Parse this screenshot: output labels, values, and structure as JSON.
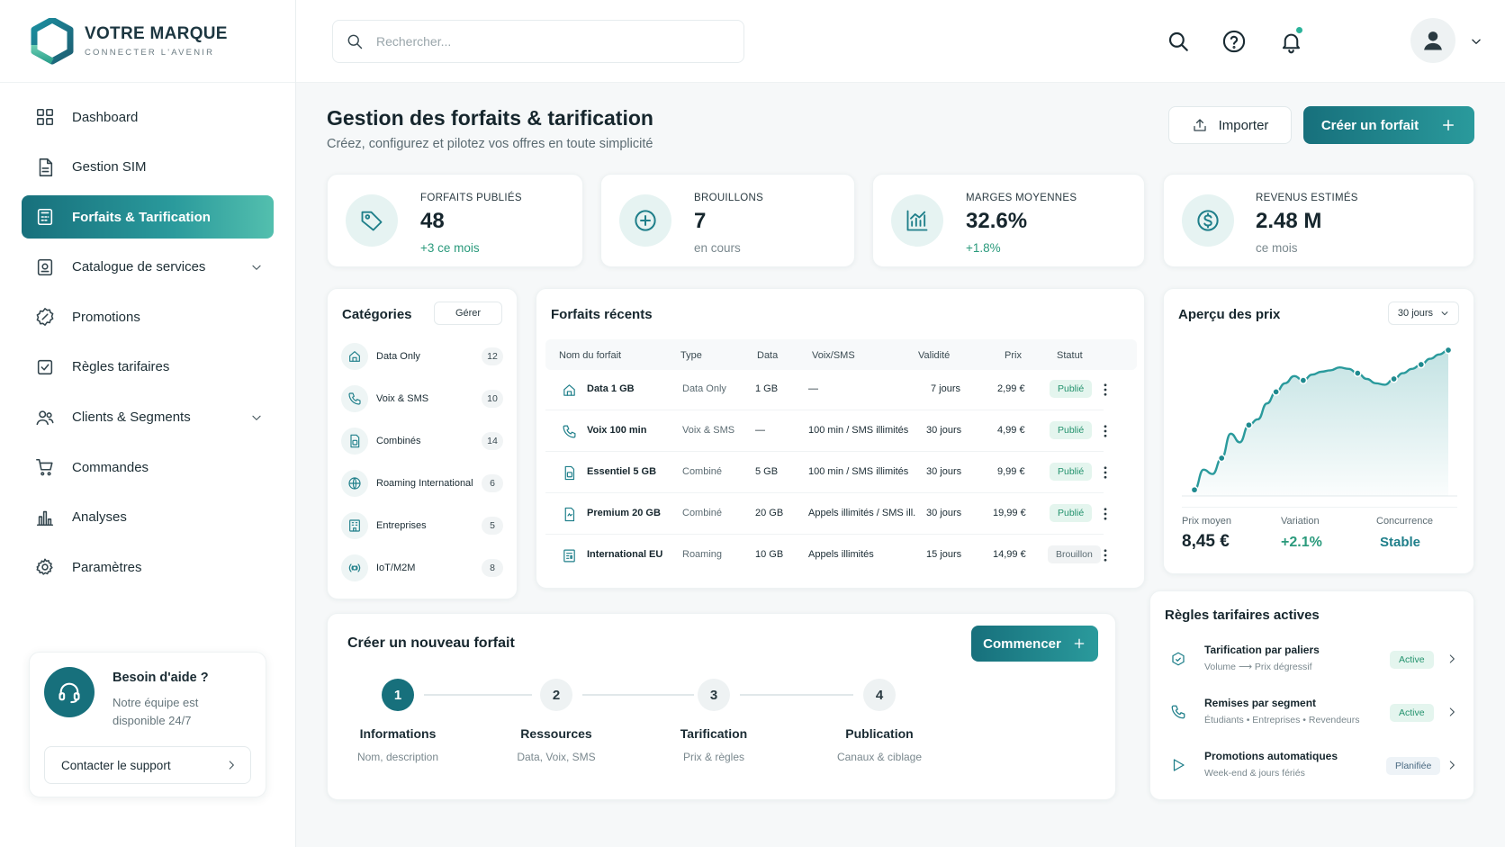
{
  "brand": {
    "name": "VOTRE MARQUE",
    "tagline": "CONNECTER L'AVENIR"
  },
  "nav": [
    {
      "label": "Dashboard",
      "icon": "grid-icon"
    },
    {
      "label": "Gestion SIM",
      "icon": "document-icon"
    },
    {
      "label": "Forfaits & Tarification",
      "icon": "calculator-icon",
      "active": true
    },
    {
      "label": "Catalogue de services",
      "icon": "catalog-icon",
      "expandable": true
    },
    {
      "label": "Promotions",
      "icon": "badge-icon"
    },
    {
      "label": "Règles tarifaires",
      "icon": "rules-icon"
    },
    {
      "label": "Clients & Segments",
      "icon": "users-icon",
      "expandable": true
    },
    {
      "label": "Commandes",
      "icon": "cart-icon"
    },
    {
      "label": "Analyses",
      "icon": "bar-chart-icon"
    },
    {
      "label": "Paramètres",
      "icon": "gear-icon"
    }
  ],
  "help": {
    "title": "Besoin d'aide ?",
    "text": "Notre équipe est disponible 24/7",
    "button": "Contacter le support"
  },
  "search": {
    "placeholder": "Rechercher..."
  },
  "header": {
    "title": "Gestion des forfaits & tarification",
    "subtitle": "Créez, configurez et pilotez vos offres en toute simplicité",
    "import_label": "Importer",
    "create_label": "Créer un forfait"
  },
  "kpis": [
    {
      "label": "FORFAITS PUBLIÉS",
      "value": "48",
      "note": "+3 ce mois",
      "note_color": "#2a9a7c"
    },
    {
      "label": "BROUILLONS",
      "value": "7",
      "note": "en cours"
    },
    {
      "label": "MARGES MOYENNES",
      "value": "32.6%",
      "note": "+1.8%",
      "note_color": "#2a9a7c"
    },
    {
      "label": "REVENUS ESTIMÉS",
      "value": "2.48 M",
      "note": "ce mois"
    }
  ],
  "categories": {
    "title": "Catégories",
    "manage_label": "Gérer",
    "items": [
      {
        "label": "Data Only",
        "count": "12"
      },
      {
        "label": "Voix & SMS",
        "count": "10"
      },
      {
        "label": "Combinés",
        "count": "14"
      },
      {
        "label": "Roaming International",
        "count": "6"
      },
      {
        "label": "Entreprises",
        "count": "5"
      },
      {
        "label": "IoT/M2M",
        "count": "8"
      }
    ]
  },
  "recent": {
    "title": "Forfaits récents",
    "columns": [
      "Nom du forfait",
      "Type",
      "Data",
      "Voix/SMS",
      "Validité",
      "Prix",
      "Statut"
    ],
    "rows": [
      {
        "name": "Data 1 GB",
        "type": "Data Only",
        "data": "1 GB",
        "voice": "—",
        "validity": "7 jours",
        "price": "2,99 €",
        "status": "Publié"
      },
      {
        "name": "Voix 100 min",
        "type": "Voix & SMS",
        "data": "—",
        "voice": "100 min / SMS illimités",
        "validity": "30 jours",
        "price": "4,99 €",
        "status": "Publié"
      },
      {
        "name": "Essentiel 5 GB",
        "type": "Combiné",
        "data": "5 GB",
        "voice": "100 min / SMS illimités",
        "validity": "30 jours",
        "price": "9,99 €",
        "status": "Publié"
      },
      {
        "name": "Premium 20 GB",
        "type": "Combiné",
        "data": "20 GB",
        "voice": "Appels illimités / SMS ill.",
        "validity": "30 jours",
        "price": "19,99 €",
        "status": "Publié"
      },
      {
        "name": "International EU",
        "type": "Roaming",
        "data": "10 GB",
        "voice": "Appels illimités",
        "validity": "15 jours",
        "price": "14,99 €",
        "status": "Brouillon"
      }
    ]
  },
  "price_overview": {
    "title": "Aperçu des prix",
    "period": "30 jours",
    "stats": [
      {
        "label": "Prix moyen",
        "value": "8,45 €",
        "color": "#16262d"
      },
      {
        "label": "Variation",
        "value": "+2.1%",
        "color": "#2a9a7c"
      },
      {
        "label": "Concurrence",
        "value": "Stable",
        "color": "#1f7f8a"
      }
    ]
  },
  "chart_data": {
    "type": "line",
    "values": [
      3,
      17,
      14,
      25,
      42,
      36,
      48,
      52,
      63,
      71,
      77,
      82,
      79,
      83,
      85,
      86,
      88,
      87,
      84,
      80,
      77,
      76,
      80,
      84,
      87,
      90,
      94,
      97,
      100
    ],
    "markers": [
      0,
      3,
      6,
      9,
      12,
      18,
      22,
      25,
      28
    ],
    "grid": false
  },
  "wizard": {
    "title": "Créer un nouveau forfait",
    "start_label": "Commencer",
    "steps": [
      {
        "num": "1",
        "title": "Informations",
        "sub": "Nom, description",
        "done": true
      },
      {
        "num": "2",
        "title": "Ressources",
        "sub": "Data, Voix, SMS"
      },
      {
        "num": "3",
        "title": "Tarification",
        "sub": "Prix & règles"
      },
      {
        "num": "4",
        "title": "Publication",
        "sub": "Canaux & ciblage"
      }
    ]
  },
  "rules": {
    "title": "Règles tarifaires actives",
    "items": [
      {
        "title": "Tarification par paliers",
        "sub": "Volume ⟶ Prix dégressif",
        "status": "Active",
        "kind": "active"
      },
      {
        "title": "Remises par segment",
        "sub": "Étudiants • Entreprises • Revendeurs",
        "status": "Active",
        "kind": "active"
      },
      {
        "title": "Promotions automatiques",
        "sub": "Week-end & jours fériés",
        "status": "Planifiée",
        "kind": "planned"
      }
    ]
  }
}
